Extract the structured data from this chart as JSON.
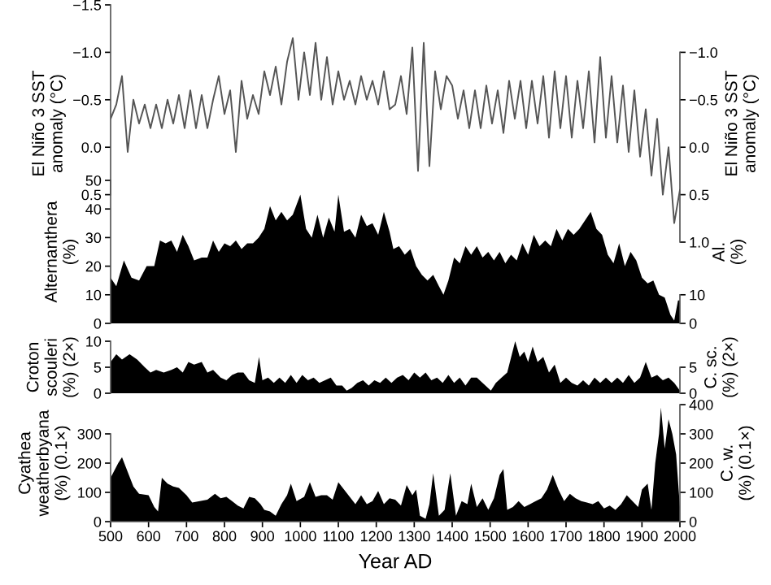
{
  "chart_data": [
    {
      "type": "line",
      "ylabel": "El Niño 3 SST\nanomaly (°C)",
      "y2label": "El Niño 3 SST\nanomaly (°C)",
      "tick_labels": "y",
      "xlim": [
        500,
        2000
      ],
      "ylim": [
        1.0,
        -1.5
      ],
      "yticks": [
        {
          "value": -1.5,
          "label": "−1.5"
        },
        {
          "value": -1.0,
          "label": "−1.0"
        },
        {
          "value": -0.5,
          "label": "−0.5"
        },
        {
          "value": 0.0,
          "label": "0.0"
        },
        {
          "value": 0.5,
          "label": "0.5"
        }
      ],
      "y2lim": [
        1.0,
        -1.5
      ],
      "y2ticks": [
        {
          "value": -1.0,
          "label": "−1.0"
        },
        {
          "value": -0.5,
          "label": "−0.5"
        },
        {
          "value": 0.0,
          "label": "0.0"
        },
        {
          "value": 0.5,
          "label": "0.5"
        },
        {
          "value": 1.0,
          "label": "1.0"
        }
      ],
      "x": [
        500,
        515,
        530,
        545,
        560,
        575,
        590,
        605,
        620,
        635,
        650,
        665,
        680,
        695,
        710,
        725,
        740,
        755,
        770,
        785,
        800,
        815,
        830,
        845,
        860,
        875,
        890,
        905,
        920,
        935,
        950,
        965,
        980,
        995,
        1010,
        1025,
        1040,
        1055,
        1070,
        1085,
        1100,
        1115,
        1130,
        1145,
        1160,
        1175,
        1190,
        1205,
        1220,
        1235,
        1250,
        1265,
        1280,
        1295,
        1310,
        1325,
        1340,
        1355,
        1370,
        1385,
        1400,
        1415,
        1430,
        1445,
        1460,
        1475,
        1490,
        1505,
        1520,
        1535,
        1550,
        1565,
        1580,
        1595,
        1610,
        1625,
        1640,
        1655,
        1670,
        1685,
        1700,
        1715,
        1730,
        1745,
        1760,
        1775,
        1790,
        1805,
        1820,
        1835,
        1850,
        1865,
        1880,
        1895,
        1910,
        1925,
        1940,
        1955,
        1970,
        1985,
        2000
      ],
      "series": [
        {
          "color": "#555555",
          "values": [
            -0.3,
            -0.45,
            -0.75,
            0.05,
            -0.5,
            -0.25,
            -0.45,
            -0.2,
            -0.45,
            -0.2,
            -0.5,
            -0.25,
            -0.55,
            -0.2,
            -0.6,
            -0.2,
            -0.55,
            -0.2,
            -0.5,
            -0.75,
            -0.35,
            -0.6,
            0.05,
            -0.7,
            -0.3,
            -0.55,
            -0.35,
            -0.8,
            -0.55,
            -0.85,
            -0.45,
            -0.9,
            -1.15,
            -0.5,
            -1.0,
            -0.55,
            -1.1,
            -0.5,
            -0.95,
            -0.45,
            -0.8,
            -0.5,
            -0.7,
            -0.45,
            -0.75,
            -0.5,
            -0.7,
            -0.45,
            -0.8,
            -0.4,
            -0.45,
            -0.75,
            -0.35,
            -1.05,
            0.25,
            -1.1,
            0.2,
            -0.8,
            -0.4,
            -0.75,
            -0.65,
            -0.3,
            -0.6,
            -0.2,
            -0.6,
            -0.2,
            -0.65,
            -0.25,
            -0.6,
            -0.15,
            -0.7,
            -0.3,
            -0.7,
            -0.2,
            -0.7,
            -0.25,
            -0.75,
            -0.1,
            -0.8,
            -0.2,
            -0.75,
            -0.1,
            -0.7,
            -0.2,
            -0.8,
            -0.05,
            -0.95,
            -0.1,
            -0.75,
            -0.05,
            -0.65,
            0.05,
            -0.6,
            0.1,
            -0.4,
            0.3,
            -0.3,
            0.5,
            0.0,
            0.8,
            0.45
          ]
        }
      ]
    },
    {
      "type": "area",
      "ylabel": "Alternanthera\n(%)",
      "y2label": "Al.\n(%)",
      "tick_labels": "y",
      "xlim": [
        500,
        2000
      ],
      "ylim": [
        0,
        50
      ],
      "yticks": [
        0,
        10,
        20,
        30,
        40,
        50
      ],
      "y2lim": [
        0,
        50
      ],
      "y2ticks": [
        0,
        10
      ],
      "x": [
        500,
        515,
        535,
        555,
        575,
        595,
        615,
        630,
        645,
        660,
        675,
        690,
        705,
        720,
        740,
        755,
        770,
        785,
        800,
        815,
        830,
        845,
        860,
        875,
        890,
        905,
        920,
        935,
        950,
        965,
        980,
        1000,
        1015,
        1030,
        1045,
        1060,
        1075,
        1090,
        1100,
        1115,
        1130,
        1145,
        1160,
        1175,
        1190,
        1205,
        1220,
        1235,
        1245,
        1260,
        1275,
        1290,
        1305,
        1320,
        1335,
        1350,
        1365,
        1377,
        1390,
        1405,
        1420,
        1435,
        1450,
        1465,
        1480,
        1495,
        1510,
        1525,
        1540,
        1555,
        1570,
        1585,
        1600,
        1615,
        1630,
        1645,
        1660,
        1675,
        1690,
        1705,
        1720,
        1735,
        1750,
        1765,
        1780,
        1795,
        1810,
        1825,
        1840,
        1855,
        1870,
        1885,
        1900,
        1915,
        1930,
        1945,
        1960,
        1975,
        1985,
        1995,
        2000
      ],
      "series": [
        {
          "color": "#000000",
          "values": [
            16,
            13,
            22,
            16,
            15,
            20,
            20,
            29,
            28,
            29,
            25,
            31,
            27,
            22,
            23,
            23,
            29,
            25,
            28,
            27,
            29,
            26,
            28,
            28,
            30,
            33,
            41,
            36,
            39,
            36,
            38,
            45,
            33,
            30,
            38,
            30,
            37,
            32,
            45,
            32,
            33,
            30,
            38,
            34,
            35,
            31,
            39,
            32,
            26,
            27,
            24,
            26,
            20,
            17,
            15,
            17,
            13,
            10,
            15,
            23,
            21,
            27,
            24,
            27,
            23,
            25,
            22,
            25,
            21,
            24,
            22,
            28,
            24,
            31,
            27,
            29,
            27,
            33,
            29,
            33,
            31,
            33,
            36,
            39,
            33,
            31,
            24,
            21,
            28,
            20,
            25,
            22,
            16,
            14,
            15,
            10,
            9,
            3,
            1,
            8,
            8
          ]
        }
      ]
    },
    {
      "type": "area",
      "ylabel": "Croton\nscouleri\n(%) (2×)",
      "y2label": "C. sc.\n(%) (2×)",
      "tick_labels": "y",
      "xlim": [
        500,
        2000
      ],
      "ylim": [
        0,
        10
      ],
      "yticks": [
        0,
        5,
        10
      ],
      "y2lim": [
        0,
        10
      ],
      "y2ticks": [
        0,
        5
      ],
      "x": [
        500,
        515,
        530,
        550,
        570,
        590,
        605,
        620,
        640,
        660,
        675,
        690,
        705,
        720,
        740,
        755,
        770,
        790,
        805,
        820,
        835,
        850,
        865,
        880,
        891,
        900,
        915,
        930,
        945,
        960,
        975,
        990,
        1005,
        1020,
        1035,
        1050,
        1065,
        1080,
        1095,
        1110,
        1122,
        1135,
        1150,
        1165,
        1180,
        1195,
        1210,
        1225,
        1240,
        1255,
        1270,
        1285,
        1300,
        1315,
        1330,
        1345,
        1360,
        1375,
        1390,
        1405,
        1420,
        1435,
        1450,
        1465,
        1480,
        1502,
        1515,
        1530,
        1545,
        1566,
        1578,
        1590,
        1600,
        1612,
        1625,
        1640,
        1655,
        1670,
        1685,
        1700,
        1715,
        1730,
        1745,
        1760,
        1775,
        1790,
        1805,
        1820,
        1835,
        1850,
        1865,
        1880,
        1895,
        1910,
        1925,
        1940,
        1955,
        1970,
        1985,
        2000
      ],
      "series": [
        {
          "color": "#000000",
          "values": [
            6,
            7.5,
            6.5,
            7.5,
            6.5,
            5,
            4,
            4.5,
            4,
            4.5,
            5,
            4,
            6,
            5.5,
            6,
            4,
            4.5,
            3,
            2.5,
            3.5,
            4,
            4,
            2.5,
            2,
            7,
            2.5,
            3,
            2,
            3,
            2,
            3.5,
            2,
            3.5,
            2.5,
            3,
            2,
            2.5,
            3,
            1.5,
            1.5,
            0.5,
            1,
            2,
            2.5,
            1.5,
            2.5,
            2,
            3,
            2,
            3,
            3.5,
            2.5,
            4,
            3,
            4,
            2.5,
            3,
            2,
            3.5,
            2,
            3,
            1.5,
            3,
            3,
            2,
            0.5,
            2,
            3,
            4,
            10,
            7,
            8,
            6,
            9,
            6,
            7,
            4,
            5.5,
            2,
            3,
            2,
            1.5,
            2.5,
            1.5,
            3,
            2,
            3,
            2,
            3,
            2,
            3.5,
            2,
            3,
            6,
            3,
            3.5,
            2.5,
            3,
            2,
            0.5
          ]
        }
      ]
    },
    {
      "type": "area",
      "ylabel": "Cyathea\nweatherbyana\n(%) (0.1×)",
      "y2label": "C. w.\n(%) (0.1×)",
      "xlabel": "Year AD",
      "xlim": [
        500,
        2000
      ],
      "xticks": [
        500,
        600,
        700,
        800,
        900,
        1000,
        1100,
        1200,
        1300,
        1400,
        1500,
        1600,
        1700,
        1800,
        1900,
        2000
      ],
      "ylim": [
        0,
        400
      ],
      "yticks": [
        0,
        100,
        200,
        300
      ],
      "y2lim": [
        0,
        400
      ],
      "y2ticks": [
        0,
        100,
        200,
        300,
        400
      ],
      "x": [
        500,
        520,
        530,
        545,
        560,
        575,
        600,
        615,
        625,
        635,
        650,
        665,
        680,
        700,
        715,
        735,
        755,
        775,
        790,
        805,
        820,
        835,
        850,
        865,
        880,
        895,
        905,
        920,
        935,
        950,
        965,
        975,
        990,
        1010,
        1025,
        1040,
        1055,
        1070,
        1085,
        1100,
        1115,
        1130,
        1145,
        1160,
        1175,
        1190,
        1205,
        1220,
        1235,
        1250,
        1265,
        1280,
        1295,
        1305,
        1315,
        1330,
        1340,
        1350,
        1365,
        1380,
        1395,
        1410,
        1425,
        1440,
        1450,
        1465,
        1480,
        1495,
        1510,
        1525,
        1535,
        1545,
        1560,
        1575,
        1590,
        1605,
        1620,
        1635,
        1650,
        1665,
        1680,
        1695,
        1710,
        1725,
        1740,
        1755,
        1770,
        1785,
        1800,
        1815,
        1830,
        1845,
        1860,
        1875,
        1890,
        1900,
        1915,
        1925,
        1935,
        1945,
        1950,
        1960,
        1970,
        1980,
        1990,
        2000
      ],
      "series": [
        {
          "color": "#000000",
          "values": [
            150,
            200,
            220,
            170,
            120,
            95,
            90,
            50,
            35,
            150,
            130,
            120,
            115,
            90,
            65,
            70,
            75,
            95,
            80,
            85,
            70,
            55,
            45,
            85,
            80,
            60,
            40,
            35,
            20,
            60,
            90,
            130,
            70,
            85,
            135,
            85,
            90,
            90,
            75,
            135,
            110,
            85,
            60,
            90,
            60,
            70,
            105,
            60,
            80,
            75,
            55,
            125,
            90,
            110,
            20,
            10,
            60,
            165,
            20,
            40,
            165,
            20,
            70,
            60,
            130,
            50,
            80,
            40,
            80,
            160,
            180,
            40,
            50,
            70,
            50,
            60,
            70,
            80,
            110,
            160,
            110,
            70,
            95,
            80,
            70,
            65,
            60,
            70,
            45,
            55,
            40,
            60,
            90,
            70,
            50,
            110,
            130,
            40,
            200,
            300,
            390,
            250,
            350,
            300,
            230,
            50
          ]
        }
      ]
    }
  ]
}
